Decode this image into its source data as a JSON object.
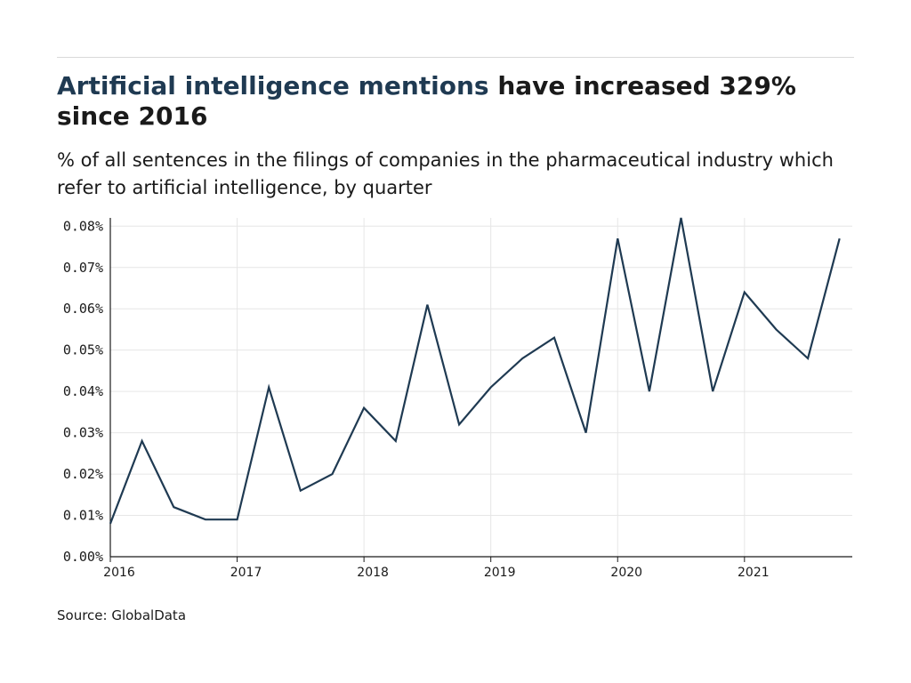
{
  "header": {
    "title_highlight": "Artificial intelligence mentions",
    "title_rest": " have increased 329% since 2016",
    "subtitle": "% of all sentences in the filings of companies in the pharmaceutical industry which refer to artificial intelligence, by quarter"
  },
  "footer": {
    "source": "Source: GlobalData"
  },
  "colors": {
    "line": "#1f3a52",
    "title_highlight": "#1f3a52",
    "grid": "#e6e6e6",
    "axis": "#1a1a1a"
  },
  "chart_data": {
    "type": "line",
    "title": "",
    "xlabel": "",
    "ylabel": "",
    "x": [
      2016.0,
      2016.25,
      2016.5,
      2016.75,
      2017.0,
      2017.25,
      2017.5,
      2017.75,
      2018.0,
      2018.25,
      2018.5,
      2018.75,
      2019.0,
      2019.25,
      2019.5,
      2019.75,
      2020.0,
      2020.25,
      2020.5,
      2020.75,
      2021.0,
      2021.25,
      2021.5,
      2021.75
    ],
    "series": [
      {
        "values": [
          0.008,
          0.028,
          0.012,
          0.009,
          0.009,
          0.041,
          0.016,
          0.02,
          0.036,
          0.028,
          0.061,
          0.032,
          0.041,
          0.048,
          0.053,
          0.03,
          0.077,
          0.04,
          0.082,
          0.04,
          0.064,
          0.055,
          0.048,
          0.077
        ]
      }
    ],
    "xlim": [
      2016,
      2021.85
    ],
    "ylim": [
      0,
      0.082
    ],
    "x_ticks": [
      2016,
      2017,
      2018,
      2019,
      2020,
      2021
    ],
    "x_tick_labels": [
      "2016",
      "2017",
      "2018",
      "2019",
      "2020",
      "2021"
    ],
    "y_ticks": [
      0,
      0.01,
      0.02,
      0.03,
      0.04,
      0.05,
      0.06,
      0.07,
      0.08
    ],
    "y_tick_labels": [
      "0.00%",
      "0.01%",
      "0.02%",
      "0.03%",
      "0.04%",
      "0.05%",
      "0.06%",
      "0.07%",
      "0.08%"
    ],
    "grid": true,
    "legend": "none"
  }
}
